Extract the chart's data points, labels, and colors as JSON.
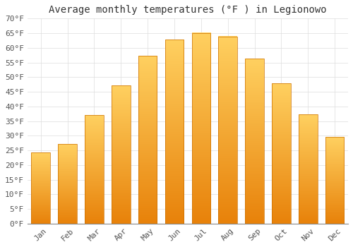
{
  "title": "Average monthly temperatures (°F ) in Legionowo",
  "months": [
    "Jan",
    "Feb",
    "Mar",
    "Apr",
    "May",
    "Jun",
    "Jul",
    "Aug",
    "Sep",
    "Oct",
    "Nov",
    "Dec"
  ],
  "values": [
    24.3,
    27.1,
    37.0,
    47.1,
    57.2,
    62.8,
    65.1,
    63.9,
    56.3,
    47.8,
    37.2,
    29.5
  ],
  "bar_color_top": "#FFB300",
  "bar_color_bottom": "#FF8C00",
  "bar_edge_color": "#CC7000",
  "background_color": "#FFFFFF",
  "grid_color": "#DDDDDD",
  "ylim": [
    0,
    70
  ],
  "yticks": [
    0,
    5,
    10,
    15,
    20,
    25,
    30,
    35,
    40,
    45,
    50,
    55,
    60,
    65,
    70
  ],
  "title_fontsize": 10,
  "tick_fontsize": 8,
  "font_family": "monospace"
}
